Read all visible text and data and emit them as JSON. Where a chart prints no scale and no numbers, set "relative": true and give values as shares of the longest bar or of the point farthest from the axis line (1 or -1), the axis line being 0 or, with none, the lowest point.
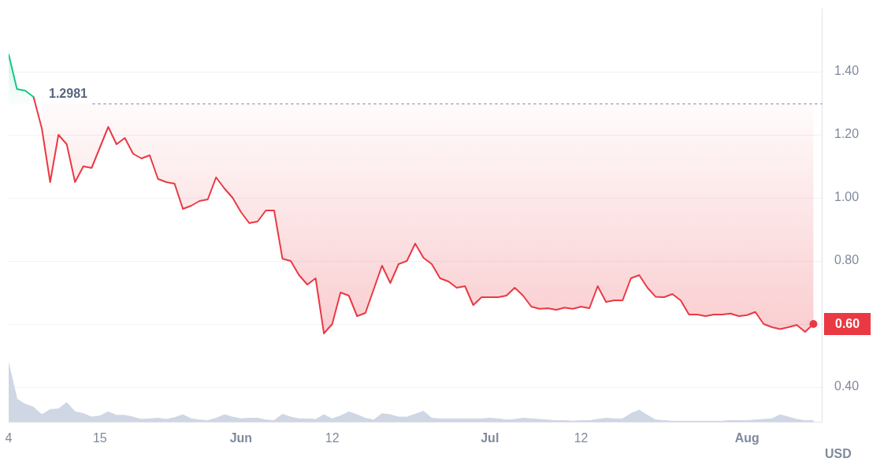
{
  "chart_data": [
    {
      "type": "line",
      "series": [
        {
          "color": "#16c784",
          "x": [
            "--05-04",
            "--05-05",
            "--05-06",
            "--05-07"
          ],
          "values": [
            1.455,
            1.345,
            1.34,
            1.32
          ],
          "lower": [
            1.2981,
            1.2981,
            1.2981,
            1.2981
          ],
          "upper": [
            1.455,
            1.345,
            1.34,
            1.32
          ]
        },
        {
          "color": "#ea3943",
          "x": [
            "--05-07",
            "--05-08",
            "--05-09",
            "--05-10",
            "--05-11",
            "--05-12",
            "--05-13",
            "--05-14",
            "--05-15",
            "--05-16",
            "--05-17",
            "--05-18",
            "--05-19",
            "--05-20",
            "--05-21",
            "--05-22",
            "--05-23",
            "--05-24",
            "--05-25",
            "--05-26",
            "--05-27",
            "--05-28",
            "--05-29",
            "--05-30",
            "--05-31",
            "--06-01",
            "--06-02",
            "--06-03",
            "--06-04",
            "--06-05",
            "--06-06",
            "--06-07",
            "--06-08",
            "--06-09",
            "--06-10",
            "--06-11",
            "--06-12",
            "--06-13",
            "--06-14",
            "--06-15",
            "--06-16",
            "--06-17",
            "--06-18",
            "--06-19",
            "--06-20",
            "--06-21",
            "--06-22",
            "--06-23",
            "--06-24",
            "--06-25",
            "--06-26",
            "--06-27",
            "--06-28",
            "--06-29",
            "--06-30",
            "--07-01",
            "--07-02",
            "--07-03",
            "--07-04",
            "--07-05",
            "--07-06",
            "--07-07",
            "--07-08",
            "--07-09",
            "--07-10",
            "--07-11",
            "--07-12",
            "--07-13",
            "--07-14",
            "--07-15",
            "--07-16",
            "--07-17",
            "--07-18",
            "--07-19",
            "--07-20",
            "--07-21",
            "--07-22",
            "--07-23",
            "--07-24",
            "--07-25",
            "--07-26",
            "--07-27",
            "--07-28",
            "--07-29",
            "--07-30",
            "--07-31",
            "--08-01",
            "--08-02",
            "--08-03",
            "--08-04",
            "--08-05",
            "--08-06",
            "--08-07",
            "--08-08",
            "--08-09"
          ],
          "values": [
            1.32,
            1.22,
            1.05,
            1.2,
            1.17,
            1.05,
            1.1,
            1.095,
            1.16,
            1.225,
            1.17,
            1.19,
            1.14,
            1.125,
            1.135,
            1.06,
            1.05,
            1.045,
            0.965,
            0.975,
            0.99,
            0.995,
            1.065,
            1.03,
            1.0,
            0.955,
            0.92,
            0.925,
            0.96,
            0.96,
            0.807,
            0.8,
            0.755,
            0.725,
            0.745,
            0.57,
            0.6,
            0.7,
            0.69,
            0.625,
            0.635,
            0.71,
            0.785,
            0.73,
            0.79,
            0.8,
            0.855,
            0.81,
            0.79,
            0.745,
            0.735,
            0.715,
            0.72,
            0.66,
            0.685,
            0.685,
            0.685,
            0.69,
            0.715,
            0.69,
            0.655,
            0.648,
            0.65,
            0.645,
            0.652,
            0.648,
            0.655,
            0.65,
            0.72,
            0.67,
            0.675,
            0.675,
            0.745,
            0.755,
            0.715,
            0.686,
            0.685,
            0.695,
            0.675,
            0.63,
            0.63,
            0.625,
            0.63,
            0.63,
            0.633,
            0.625,
            0.628,
            0.638,
            0.6,
            0.59,
            0.584,
            0.59,
            0.597,
            0.575,
            0.6
          ],
          "lower": [
            null,
            1.22,
            1.05,
            1.2,
            1.17,
            1.05,
            1.1,
            1.095,
            1.16,
            1.225,
            1.17,
            1.19,
            1.14,
            1.125,
            1.135,
            1.06,
            1.05,
            1.045,
            0.965,
            0.975,
            0.99,
            0.995,
            1.065,
            1.03,
            1.0,
            0.955,
            0.92,
            0.925,
            0.96,
            0.96,
            0.807,
            0.8,
            0.755,
            0.725,
            0.745,
            0.57,
            0.6,
            0.7,
            0.69,
            0.625,
            0.635,
            0.71,
            0.785,
            0.73,
            0.79,
            0.8,
            0.855,
            0.81,
            0.79,
            0.745,
            0.735,
            0.715,
            0.72,
            0.66,
            0.685,
            0.685,
            0.685,
            0.69,
            0.715,
            0.69,
            0.655,
            0.648,
            0.65,
            0.645,
            0.652,
            0.648,
            0.655,
            0.65,
            0.72,
            0.67,
            0.675,
            0.675,
            0.745,
            0.755,
            0.715,
            0.686,
            0.685,
            0.695,
            0.675,
            0.63,
            0.63,
            0.625,
            0.63,
            0.63,
            0.633,
            0.625,
            0.628,
            0.638,
            0.6,
            0.59,
            0.584,
            0.59,
            0.597,
            0.575,
            0.6
          ],
          "upper": [
            null,
            1.2981,
            1.2981,
            1.2981,
            1.2981,
            1.2981,
            1.2981,
            1.2981,
            1.2981,
            1.2981,
            1.2981,
            1.2981,
            1.2981,
            1.2981,
            1.2981,
            1.2981,
            1.2981,
            1.2981,
            1.2981,
            1.2981,
            1.2981,
            1.2981,
            1.2981,
            1.2981,
            1.2981,
            1.2981,
            1.2981,
            1.2981,
            1.2981,
            1.2981,
            1.2981,
            1.2981,
            1.2981,
            1.2981,
            1.2981,
            1.2981,
            1.2981,
            1.2981,
            1.2981,
            1.2981,
            1.2981,
            1.2981,
            1.2981,
            1.2981,
            1.2981,
            1.2981,
            1.2981,
            1.2981,
            1.2981,
            1.2981,
            1.2981,
            1.2981,
            1.2981,
            1.2981,
            1.2981,
            1.2981,
            1.2981,
            1.2981,
            1.2981,
            1.2981,
            1.2981,
            1.2981,
            1.2981,
            1.2981,
            1.2981,
            1.2981,
            1.2981,
            1.2981,
            1.2981,
            1.2981,
            1.2981,
            1.2981,
            1.2981,
            1.2981,
            1.2981,
            1.2981,
            1.2981,
            1.2981,
            1.2981,
            1.2981,
            1.2981,
            1.2981,
            1.2981,
            1.2981,
            1.2981,
            1.2981,
            1.2981,
            1.2981,
            1.2981,
            1.2981,
            1.2981,
            1.2981,
            1.2981,
            1.2981,
            1.2981
          ]
        }
      ],
      "xlim": [
        "--05-04",
        "--08-10"
      ],
      "ylim": [
        0.29,
        1.6
      ],
      "yticks": [
        {
          "value": 0.4,
          "label": "0.40"
        },
        {
          "value": 0.6,
          "label": null
        },
        {
          "value": 0.8,
          "label": "0.80"
        },
        {
          "value": 1.0,
          "label": "1.00"
        },
        {
          "value": 1.2,
          "label": "1.20"
        },
        {
          "value": 1.4,
          "label": "1.40"
        }
      ],
      "ylabel": "USD",
      "tick_labels": "y",
      "ref_lines": [
        {
          "axis": "y",
          "value": 1.2981,
          "label": "1.2981",
          "color": "#a1a7bb",
          "line_style": "dotted"
        }
      ],
      "annotations": [
        {
          "text": "0.60",
          "x": "--08-09",
          "y": 0.6
        }
      ],
      "grid": "y"
    },
    {
      "type": "area",
      "relative": true,
      "color": "#cfd6e4",
      "x": [
        "--05-04",
        "--05-05",
        "--05-06",
        "--05-07",
        "--05-08",
        "--05-09",
        "--05-10",
        "--05-11",
        "--05-12",
        "--05-13",
        "--05-14",
        "--05-15",
        "--05-16",
        "--05-17",
        "--05-18",
        "--05-19",
        "--05-20",
        "--05-21",
        "--05-22",
        "--05-23",
        "--05-24",
        "--05-25",
        "--05-26",
        "--05-27",
        "--05-28",
        "--05-29",
        "--05-30",
        "--05-31",
        "--06-01",
        "--06-02",
        "--06-03",
        "--06-04",
        "--06-05",
        "--06-06",
        "--06-07",
        "--06-08",
        "--06-09",
        "--06-10",
        "--06-11",
        "--06-12",
        "--06-13",
        "--06-14",
        "--06-15",
        "--06-16",
        "--06-17",
        "--06-18",
        "--06-19",
        "--06-20",
        "--06-21",
        "--06-22",
        "--06-23",
        "--06-24",
        "--06-25",
        "--06-26",
        "--06-27",
        "--06-28",
        "--06-29",
        "--06-30",
        "--07-01",
        "--07-02",
        "--07-03",
        "--07-04",
        "--07-05",
        "--07-06",
        "--07-07",
        "--07-08",
        "--07-09",
        "--07-10",
        "--07-11",
        "--07-12",
        "--07-13",
        "--07-14",
        "--07-15",
        "--07-16",
        "--07-17",
        "--07-18",
        "--07-19",
        "--07-20",
        "--07-21",
        "--07-22",
        "--07-23",
        "--07-24",
        "--07-25",
        "--07-26",
        "--07-27",
        "--07-28",
        "--07-29",
        "--07-30",
        "--07-31",
        "--08-01",
        "--08-02",
        "--08-03",
        "--08-04",
        "--08-05",
        "--08-06",
        "--08-07",
        "--08-08",
        "--08-09"
      ],
      "values": [
        1.0,
        0.39,
        0.3,
        0.25,
        0.12,
        0.21,
        0.22,
        0.33,
        0.17,
        0.14,
        0.08,
        0.1,
        0.17,
        0.11,
        0.11,
        0.08,
        0.04,
        0.05,
        0.06,
        0.04,
        0.07,
        0.12,
        0.05,
        0.03,
        0.02,
        0.06,
        0.12,
        0.08,
        0.05,
        0.06,
        0.06,
        0.03,
        0.02,
        0.13,
        0.08,
        0.05,
        0.05,
        0.04,
        0.12,
        0.05,
        0.1,
        0.17,
        0.12,
        0.06,
        0.03,
        0.14,
        0.12,
        0.08,
        0.08,
        0.13,
        0.18,
        0.06,
        0.05,
        0.05,
        0.05,
        0.05,
        0.05,
        0.05,
        0.06,
        0.05,
        0.03,
        0.04,
        0.06,
        0.05,
        0.04,
        0.03,
        0.02,
        0.02,
        0.01,
        0.02,
        0.02,
        0.04,
        0.06,
        0.05,
        0.05,
        0.14,
        0.2,
        0.11,
        0.03,
        0.02,
        0.01,
        0.01,
        0.01,
        0.01,
        0.01,
        0.01,
        0.01,
        0.02,
        0.02,
        0.02,
        0.03,
        0.04,
        0.05,
        0.12,
        0.08,
        0.04,
        0.02,
        0.02
      ],
      "xlim": [
        "--05-04",
        "--08-10"
      ],
      "xticks": [
        {
          "value": "--05-04",
          "label": "4"
        },
        {
          "value": "--05-15",
          "label": "15"
        },
        {
          "value": "--06-01",
          "label": "Jun"
        },
        {
          "value": "--06-12",
          "label": "12"
        },
        {
          "value": "--07-01",
          "label": "Jul"
        },
        {
          "value": "--07-12",
          "label": "12"
        },
        {
          "value": "--08-01",
          "label": "Aug"
        }
      ]
    }
  ]
}
